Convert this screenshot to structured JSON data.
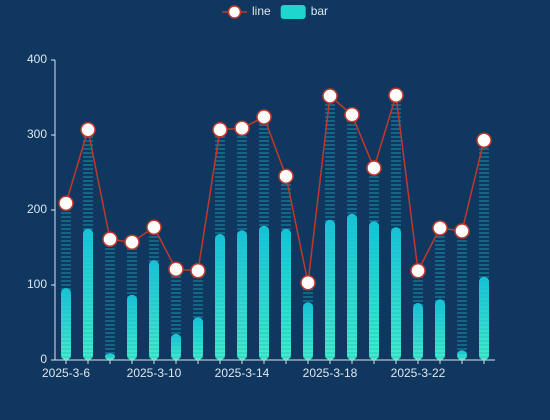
{
  "chart_data": {
    "type": "line-bar",
    "categories": [
      "2025-3-6",
      null,
      null,
      null,
      "2025-3-10",
      null,
      null,
      null,
      "2025-3-14",
      null,
      null,
      null,
      "2025-3-18",
      null,
      null,
      null,
      "2025-3-22",
      null,
      null,
      null
    ],
    "series": [
      {
        "name": "line",
        "type": "line",
        "color": "#c0392b",
        "values": [
          209,
          307,
          161,
          157,
          177,
          121,
          119,
          307,
          309,
          324,
          245,
          103,
          352,
          327,
          256,
          353,
          119,
          176,
          172,
          293
        ]
      },
      {
        "name": "bar",
        "type": "bar",
        "color": "#1fd6cf",
        "values": [
          96,
          175,
          9,
          87,
          133,
          35,
          57,
          168,
          173,
          179,
          175,
          77,
          187,
          195,
          185,
          177,
          76,
          81,
          13,
          111
        ]
      }
    ],
    "ylim": [
      0,
      400
    ],
    "yticks": [
      0,
      100,
      200,
      300,
      400
    ],
    "grid": false
  }
}
